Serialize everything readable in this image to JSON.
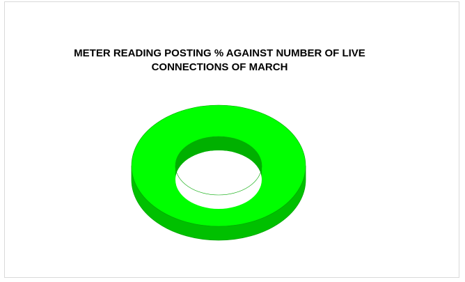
{
  "chart_data": {
    "type": "pie",
    "variant": "3d-doughnut",
    "title_lines": [
      "METER READING POSTING % AGAINST NUMBER OF LIVE",
      "CONNECTIONS OF MARCH"
    ],
    "slices": [
      {
        "value": 100,
        "color": "#00ff00"
      }
    ],
    "legend": "none",
    "colors": {
      "top": "#00ff00",
      "side": "#00c000",
      "inner_wall": "#00b000",
      "edge": "#00a800"
    }
  }
}
